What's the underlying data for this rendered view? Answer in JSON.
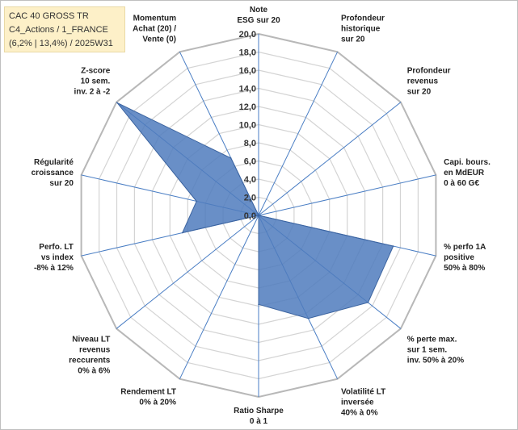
{
  "title_box": {
    "line1": "CAC 40 GROSS TR",
    "line2": "C4_Actions / 1_FRANCE",
    "line3": "(6,2% | 13,4%) / 2025W31"
  },
  "chart_data": {
    "type": "radar",
    "grid": true,
    "ylim": [
      0,
      20
    ],
    "ticks": [
      "0,0",
      "2,0",
      "4,0",
      "6,0",
      "8,0",
      "10,0",
      "12,0",
      "14,0",
      "16,0",
      "18,0",
      "20,0"
    ],
    "categories": [
      [
        "Note",
        "ESG sur 20"
      ],
      [
        "Profondeur",
        "historique",
        "sur 20"
      ],
      [
        "Profondeur",
        "revenus",
        "sur 20"
      ],
      [
        "Capi. bours.",
        "en MdEUR",
        "0 à 60 G€"
      ],
      [
        "% perfo 1A",
        "positive",
        "50% à 80%"
      ],
      [
        "% perte max.",
        "sur 1 sem.",
        "inv. 50% à 20%"
      ],
      [
        "Volatilité LT",
        "inversée",
        "40% à 0%"
      ],
      [
        "Ratio Sharpe",
        "0 à 1"
      ],
      [
        "Rendement LT",
        "0% à 20%"
      ],
      [
        "Niveau LT",
        "revenus",
        "reccurents",
        "0% à 6%"
      ],
      [
        "Perfo. LT",
        "vs index",
        "-8% à 12%"
      ],
      [
        "Régularité",
        "croissance",
        "sur 20"
      ],
      [
        "Z-score",
        "10 sem.",
        "inv. 2 à -2"
      ],
      [
        "Momentum",
        "Achat (20) /",
        "Vente (0)"
      ]
    ],
    "series": [
      {
        "values": [
          0,
          0,
          0,
          0,
          15.2,
          15.4,
          12.6,
          9.8,
          0,
          0,
          8.6,
          7.0,
          19.9,
          7.0
        ],
        "color": "#4f7bbd"
      }
    ]
  }
}
